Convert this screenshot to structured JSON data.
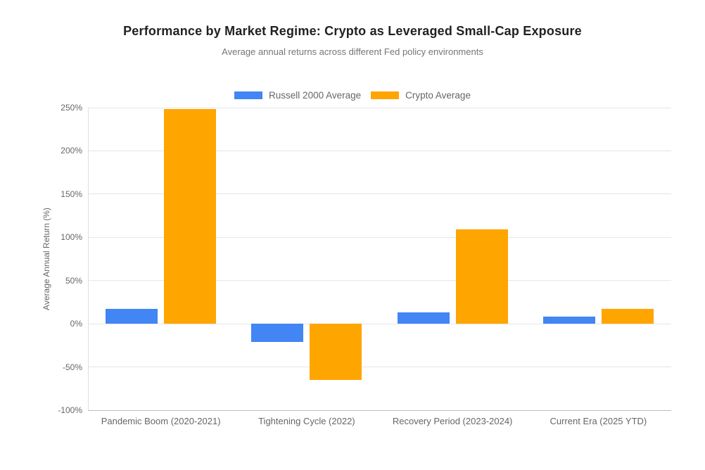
{
  "chart_data": {
    "type": "bar",
    "title": "Performance by Market Regime: Crypto as Leveraged Small-Cap Exposure",
    "subtitle": "Average annual returns across different Fed policy environments",
    "ylabel": "Average Annual Return (%)",
    "xlabel": "",
    "categories": [
      "Pandemic Boom (2020-2021)",
      "Tightening Cycle (2022)",
      "Recovery Period (2023-2024)",
      "Current Era (2025 YTD)"
    ],
    "series": [
      {
        "name": "Russell 2000 Average",
        "color": "#4285F4",
        "values": [
          17,
          -21,
          13,
          8
        ]
      },
      {
        "name": "Crypto Average",
        "color": "#FFA500",
        "values": [
          248,
          -65,
          109,
          17
        ]
      }
    ],
    "ylim": [
      -100,
      250
    ],
    "yticks": [
      {
        "value": 250,
        "label": "250%"
      },
      {
        "value": 200,
        "label": "200%"
      },
      {
        "value": 150,
        "label": "150%"
      },
      {
        "value": 100,
        "label": "100%"
      },
      {
        "value": 50,
        "label": "50%"
      },
      {
        "value": 0,
        "label": "0%"
      },
      {
        "value": -50,
        "label": "-50%"
      },
      {
        "value": -100,
        "label": "-100%"
      }
    ],
    "grid": true,
    "legend_position": "top"
  },
  "colors": {
    "background": "#ffffff",
    "title_text": "#212121",
    "subtitle_text": "#757575",
    "axis_text": "#666666",
    "gridline": "#e6e6e6",
    "axis_bottom_line": "#bdbdbd"
  }
}
